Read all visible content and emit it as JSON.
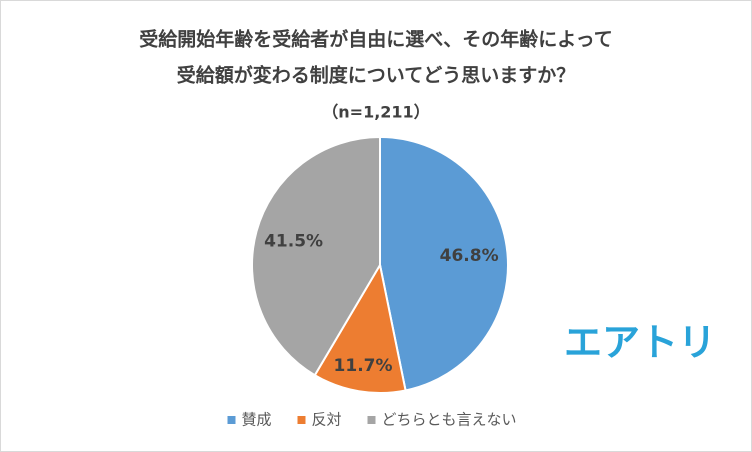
{
  "chart_data": {
    "type": "pie",
    "title": [
      "受給開始年齢を受給者が自由に選べ、その年齢によって",
      "受給額が変わる制度についてどう思いますか？"
    ],
    "subtitle": "（n=1,211）",
    "categories": [
      "賛成",
      "反対",
      "どちらとも言えない"
    ],
    "values": [
      46.8,
      11.7,
      41.5
    ],
    "value_labels": [
      "46.8%",
      "11.7%",
      "41.5%"
    ],
    "colors": [
      "#5b9bd5",
      "#ed7d31",
      "#a5a5a5"
    ],
    "legend": "bottom",
    "logo": "エアトリ"
  }
}
